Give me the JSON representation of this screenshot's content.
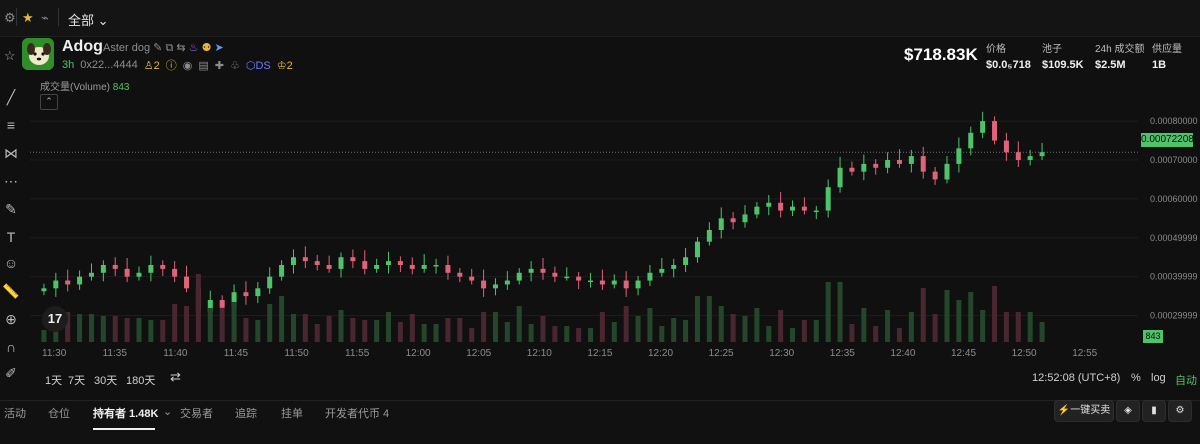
{
  "topbar": {
    "filter_label": "全部"
  },
  "token": {
    "name": "Adog",
    "subtitle": "Aster dog",
    "age": "3h",
    "address": "0x22...4444",
    "holders_badge": "2",
    "ds_label": "DS",
    "crown_count": "2"
  },
  "summary": {
    "market_cap": "$718.83K",
    "stats": [
      {
        "label": "价格",
        "value": "$0.0₅718"
      },
      {
        "label": "池子",
        "value": "$109.5K"
      },
      {
        "label": "24h 成交额",
        "value": "$2.5M"
      },
      {
        "label": "供应量",
        "value": "1B"
      }
    ]
  },
  "chart": {
    "volume_label": "成交量(Volume)",
    "volume_value": "843",
    "current_price_tag": "0.00072208",
    "volume_tag": "843",
    "y_ticks": [
      "0.00080000",
      "0.00070000",
      "0.00060000",
      "0.00049999",
      "0.00039999",
      "0.00029999"
    ],
    "x_ticks": [
      "11:30",
      "11:35",
      "11:40",
      "11:45",
      "11:50",
      "11:55",
      "12:00",
      "12:05",
      "12:10",
      "12:15",
      "12:20",
      "12:25",
      "12:30",
      "12:35",
      "12:40",
      "12:45",
      "12:50",
      "12:55"
    ],
    "up_color": "#4ec46a",
    "down_color": "#e0637a"
  },
  "chart_data": {
    "type": "candlestick",
    "x_range": [
      "11:29",
      "12:52"
    ],
    "ylim": [
      0.00025,
      0.00088
    ],
    "series": [
      {
        "close": [
          0.00037,
          0.00039,
          0.00038,
          0.0004,
          0.00041,
          0.00043,
          0.00042,
          0.0004,
          0.00041,
          0.00043,
          0.00042,
          0.0004,
          0.00037,
          0.00031,
          0.00034,
          0.00032,
          0.00036,
          0.00035,
          0.00037,
          0.0004,
          0.00043,
          0.00045,
          0.00044,
          0.00043,
          0.00042,
          0.00045,
          0.00044,
          0.00042,
          0.00043,
          0.00044,
          0.00043,
          0.00042,
          0.00043,
          0.00043,
          0.00041,
          0.0004,
          0.00039,
          0.00037,
          0.00038,
          0.00039,
          0.00041,
          0.00042,
          0.00041,
          0.0004,
          0.0004,
          0.00039,
          0.00039,
          0.00038,
          0.00039,
          0.00037,
          0.00039,
          0.00041,
          0.00042,
          0.00043,
          0.00045,
          0.00049,
          0.00052,
          0.00055,
          0.00054,
          0.00056,
          0.00058,
          0.00059,
          0.00057,
          0.00058,
          0.00057,
          0.00057,
          0.00063,
          0.00068,
          0.00067,
          0.00069,
          0.00068,
          0.0007,
          0.00069,
          0.00071,
          0.00067,
          0.00065,
          0.00069,
          0.00073,
          0.00077,
          0.0008,
          0.00075,
          0.00072,
          0.0007,
          0.00071,
          0.00072
        ]
      }
    ]
  },
  "range_buttons": [
    "1天",
    "7天",
    "30天",
    "180天"
  ],
  "time_readout": "12:52:08 (UTC+8)",
  "axis_options": {
    "percent": "%",
    "log": "log",
    "auto": "自动"
  },
  "tabs": [
    "活动",
    "仓位",
    "持有者 1.48K",
    "交易者",
    "追踪",
    "挂单",
    "开发者代币 4"
  ],
  "actions": {
    "quick_buy": "一键买卖"
  }
}
